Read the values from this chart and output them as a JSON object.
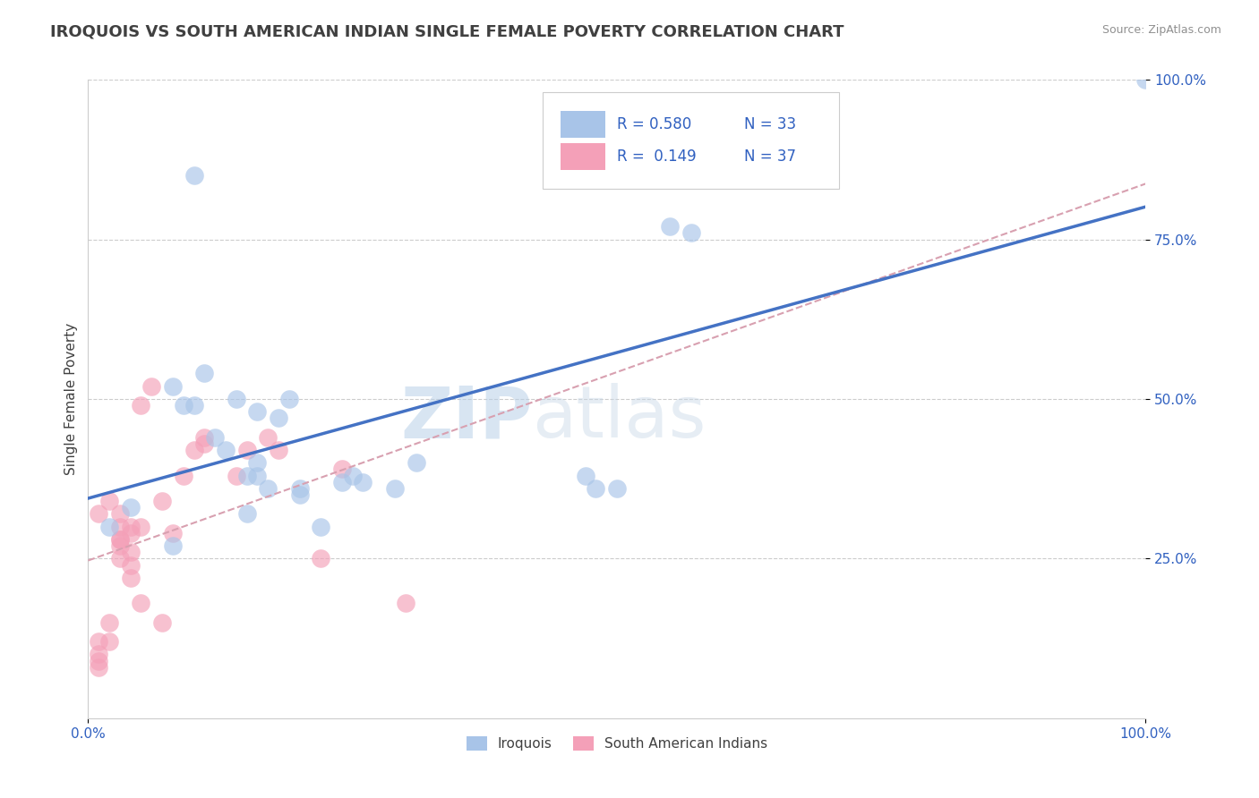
{
  "title": "IROQUOIS VS SOUTH AMERICAN INDIAN SINGLE FEMALE POVERTY CORRELATION CHART",
  "source": "Source: ZipAtlas.com",
  "ylabel": "Single Female Poverty",
  "watermark_zip": "ZIP",
  "watermark_atlas": "atlas",
  "iroquois_R": 0.58,
  "iroquois_N": 33,
  "sa_indian_R": 0.149,
  "sa_indian_N": 37,
  "iroquois_color": "#a8c4e8",
  "iroquois_line_color": "#4472c4",
  "sa_indian_color": "#f4a0b8",
  "sa_indian_line_color": "#e06080",
  "sa_indian_dash_color": "#d8a0b0",
  "background_color": "#ffffff",
  "grid_color": "#cccccc",
  "title_color": "#404040",
  "source_color": "#909090",
  "legend_text_color": "#3060c0",
  "axis_label_color": "#3060c0",
  "iroquois_x": [
    0.02,
    0.04,
    0.08,
    0.08,
    0.09,
    0.1,
    0.1,
    0.11,
    0.12,
    0.13,
    0.14,
    0.15,
    0.15,
    0.16,
    0.16,
    0.16,
    0.17,
    0.18,
    0.19,
    0.2,
    0.2,
    0.22,
    0.24,
    0.25,
    0.26,
    0.29,
    0.31,
    0.47,
    0.48,
    0.5,
    0.55,
    0.57,
    1.0
  ],
  "iroquois_y": [
    0.3,
    0.33,
    0.27,
    0.52,
    0.49,
    0.49,
    0.85,
    0.54,
    0.44,
    0.42,
    0.5,
    0.38,
    0.32,
    0.48,
    0.4,
    0.38,
    0.36,
    0.47,
    0.5,
    0.36,
    0.35,
    0.3,
    0.37,
    0.38,
    0.37,
    0.36,
    0.4,
    0.38,
    0.36,
    0.36,
    0.77,
    0.76,
    1.0
  ],
  "sa_indian_x": [
    0.01,
    0.01,
    0.01,
    0.01,
    0.01,
    0.02,
    0.02,
    0.02,
    0.03,
    0.03,
    0.03,
    0.03,
    0.03,
    0.03,
    0.04,
    0.04,
    0.04,
    0.04,
    0.04,
    0.05,
    0.05,
    0.05,
    0.06,
    0.07,
    0.07,
    0.08,
    0.09,
    0.1,
    0.11,
    0.11,
    0.14,
    0.15,
    0.17,
    0.18,
    0.22,
    0.24,
    0.3
  ],
  "sa_indian_y": [
    0.08,
    0.09,
    0.1,
    0.12,
    0.32,
    0.12,
    0.15,
    0.34,
    0.25,
    0.27,
    0.28,
    0.28,
    0.3,
    0.32,
    0.22,
    0.24,
    0.26,
    0.29,
    0.3,
    0.18,
    0.3,
    0.49,
    0.52,
    0.15,
    0.34,
    0.29,
    0.38,
    0.42,
    0.43,
    0.44,
    0.38,
    0.42,
    0.44,
    0.42,
    0.25,
    0.39,
    0.18
  ],
  "xlim": [
    0.0,
    1.0
  ],
  "ylim": [
    0.0,
    1.0
  ],
  "xtick_positions": [
    0.0,
    1.0
  ],
  "xtick_labels": [
    "0.0%",
    "100.0%"
  ],
  "ytick_positions": [
    0.25,
    0.5,
    0.75,
    1.0
  ],
  "ytick_labels": [
    "25.0%",
    "50.0%",
    "75.0%",
    "100.0%"
  ]
}
